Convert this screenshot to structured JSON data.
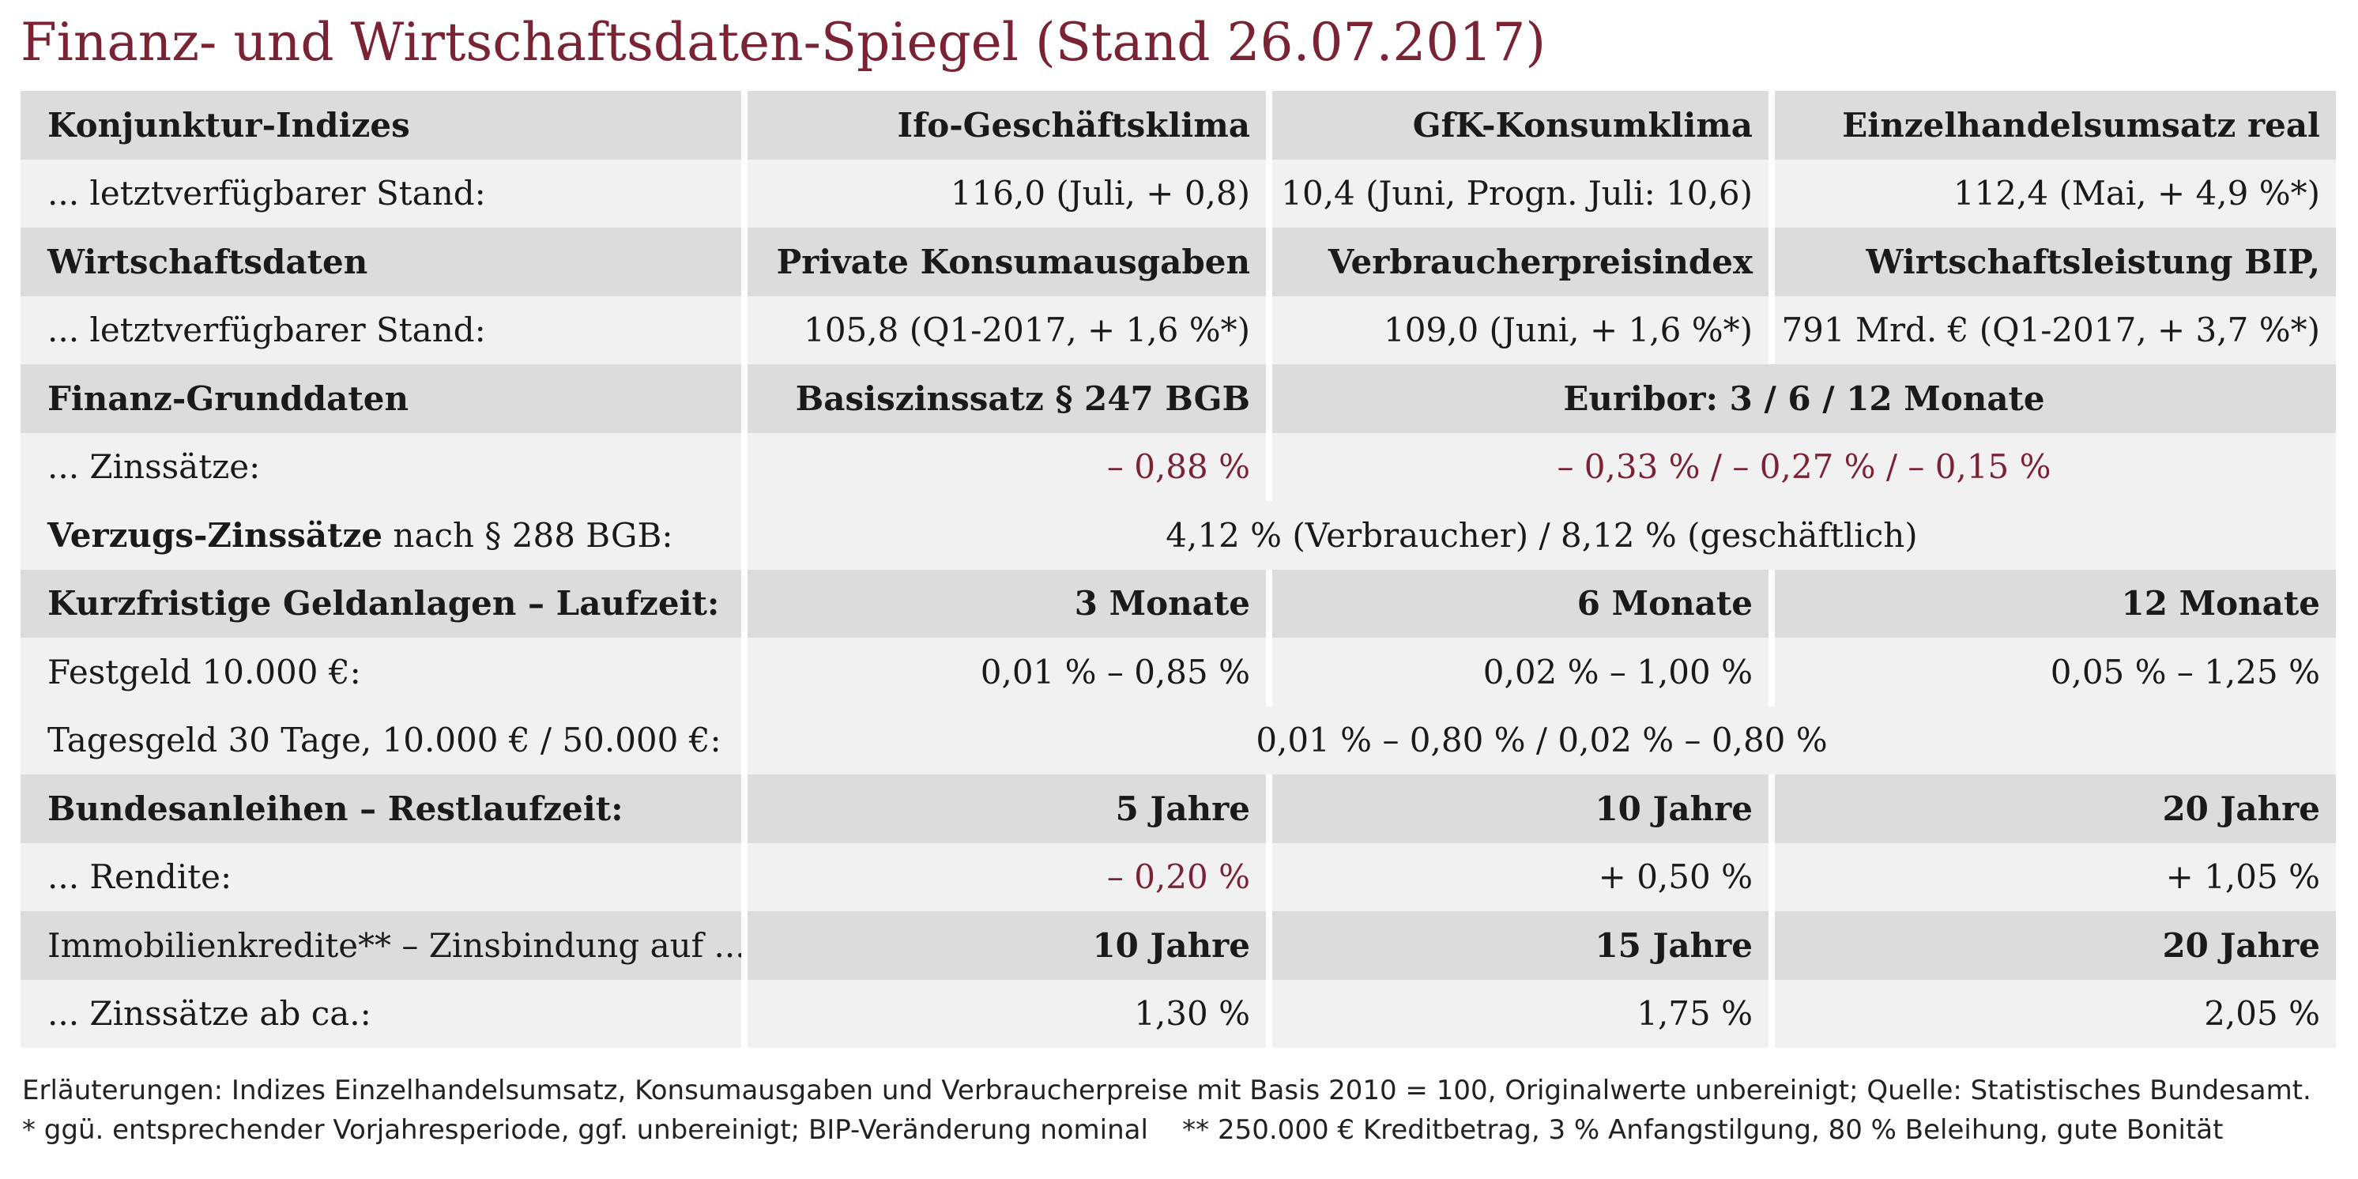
{
  "title": "Finanz- und Wirtschaftsdaten-Spiegel (Stand 26.07.2017)",
  "rows": {
    "r1": [
      "Konjunktur-Indizes",
      "Ifo-Geschäftsklima",
      "GfK-Konsumklima",
      "Einzelhandelsumsatz real"
    ],
    "r2": [
      "... letztverfügbarer Stand:",
      "116,0 (Juli, + 0,8)",
      "10,4 (Juni, Progn. Juli: 10,6)",
      "112,4 (Mai, + 4,9 %*)"
    ],
    "r3": [
      "Wirtschaftsdaten",
      "Private Konsumausgaben",
      "Verbraucherpreisindex",
      "Wirtschaftsleistung BIP,"
    ],
    "r4": [
      "... letztverfügbarer Stand:",
      "105,8 (Q1-2017, + 1,6 %*)",
      "109,0 (Juni, + 1,6 %*)",
      "791 Mrd. € (Q1-2017, + 3,7 %*)"
    ],
    "r5": [
      "Finanz-Grunddaten",
      "Basiszinssatz § 247 BGB",
      "Euribor: 3 / 6 / 12 Monate"
    ],
    "r6": [
      "... Zinssätze:",
      "– 0,88 %",
      "– 0,33 % / – 0,27 % / – 0,15 %"
    ],
    "r7": {
      "label_bold": "Verzugs-Zinssätze",
      "label_rest": " nach § 288 BGB:",
      "value": "4,12 % (Verbraucher) / 8,12 % (geschäftlich)"
    },
    "r8": [
      "Kurzfristige Geldanlagen – Laufzeit:",
      "3 Monate",
      "6 Monate",
      "12 Monate"
    ],
    "r9": [
      "Festgeld 10.000 €:",
      "0,01 % – 0,85 %",
      "0,02 % – 1,00 %",
      "0,05 % – 1,25 %"
    ],
    "r10": [
      "Tagesgeld 30 Tage, 10.000 € / 50.000 €:",
      "0,01 % – 0,80 % / 0,02 % – 0,80 %"
    ],
    "r11": [
      "Bundesanleihen – Restlaufzeit:",
      "5 Jahre",
      "10 Jahre",
      "20 Jahre"
    ],
    "r12": [
      "... Rendite:",
      "– 0,20 %",
      "+ 0,50 %",
      "+ 1,05 %"
    ],
    "r13": [
      "Immobilienkredite** – Zinsbindung auf ...:",
      "10 Jahre",
      "15 Jahre",
      "20 Jahre"
    ],
    "r14": [
      "... Zinssätze ab ca.:",
      "1,30 %",
      "1,75 %",
      "2,05 %"
    ]
  },
  "notes": {
    "line1": "Erläuterungen: Indizes Einzelhandelsumsatz, Konsumausgaben und Verbraucherpreise mit Basis 2010 = 100, Originalwerte unbereinigt; Quelle: Statistisches Bundesamt.",
    "line2": "* ggü. entsprechender Vorjahresperiode, ggf. unbereinigt; BIP-Veränderung nominal    ** 250.000 € Kreditbetrag, 3 % Anfangstilgung, 80 % Beleihung, gute Bonität"
  },
  "colors": {
    "accent": "#7a2335",
    "header_row": "#dcdcdc",
    "data_row": "#f1f1f1"
  }
}
